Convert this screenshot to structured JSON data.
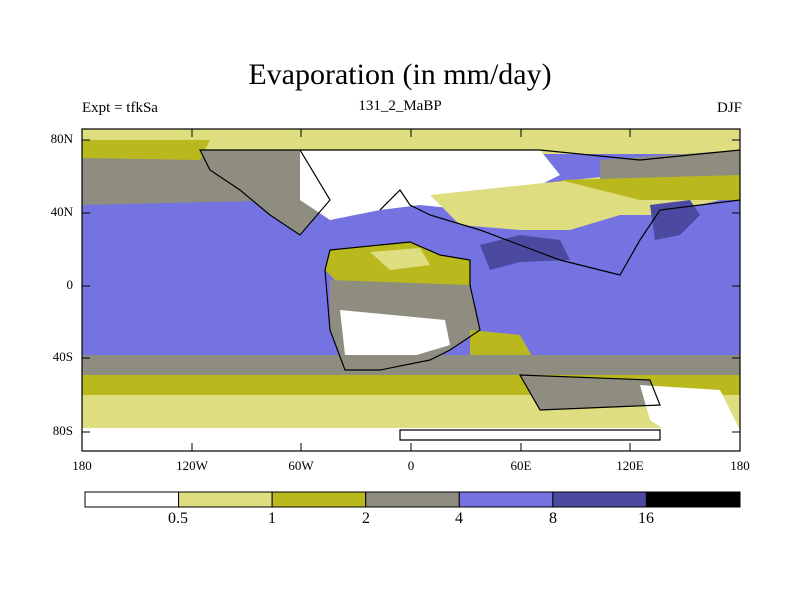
{
  "title": "Evaporation (in mm/day)",
  "experiment": "Expt = tfkSa",
  "subtitle": "131_2_MaBP",
  "season": "DJF",
  "lat_labels": [
    "80N",
    "40N",
    "0",
    "40S",
    "80S"
  ],
  "lon_labels": [
    "180",
    "120W",
    "60W",
    "0",
    "60E",
    "120E",
    "180"
  ],
  "colorbar": {
    "labels": [
      "0.5",
      "1",
      "2",
      "4",
      "8",
      "16"
    ],
    "colors": [
      "#ffffff",
      "#dedd80",
      "#b9b81d",
      "#8e8d80",
      "#7473e1",
      "#4b4aa0",
      "#000000"
    ]
  }
}
